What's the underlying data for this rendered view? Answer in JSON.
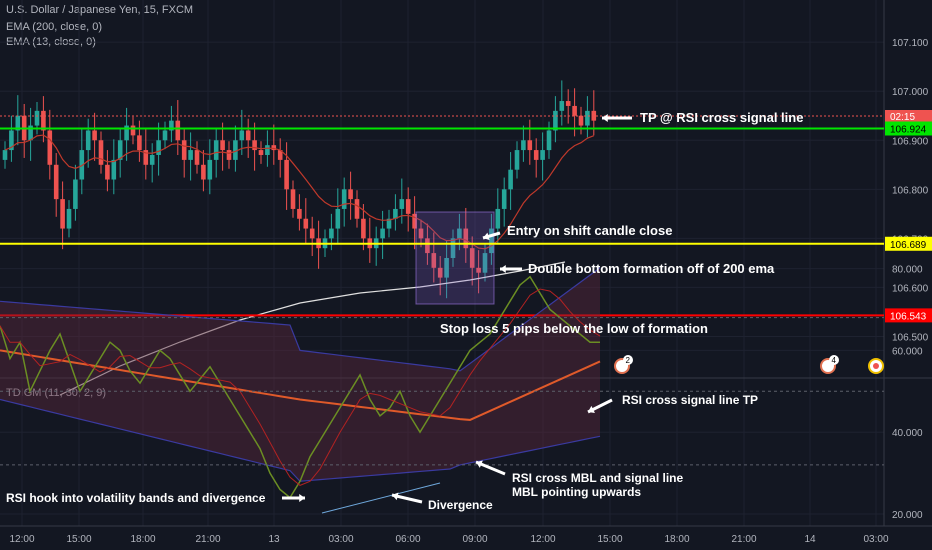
{
  "chart_data": [
    {
      "type": "candlestick",
      "title": "U.S. Dollar / Japanese Yen, 15, FXCM",
      "indicators": [
        "EMA (200, close, 0)",
        "EMA (13, close, 0)"
      ],
      "x_ticks": [
        "12:00",
        "15:00",
        "18:00",
        "21:00",
        "13",
        "03:00",
        "06:00",
        "09:00",
        "12:00",
        "15:00",
        "18:00",
        "21:00",
        "14",
        "03:00"
      ],
      "y_ticks": [
        "106.500",
        "106.600",
        "106.700",
        "106.800",
        "106.900",
        "107.000",
        "107.100"
      ],
      "ylim": [
        106.47,
        107.2
      ],
      "current_price_label": "02:15",
      "levels": [
        {
          "name": "tp-level",
          "value": 106.924,
          "label": "106.924",
          "color": "#00e600"
        },
        {
          "name": "entry-level",
          "value": 106.689,
          "label": "106.689",
          "color": "#ffff00"
        },
        {
          "name": "stop-level",
          "value": 106.543,
          "label": "106.543",
          "color": "#ff0000"
        }
      ],
      "annotations": [
        "TP @ RSI cross signal line",
        "Entry on shift candle close",
        "Double bottom formation off of 200 ema",
        "Stop loss 5 pips below the low of formation"
      ],
      "event_badges": [
        "2",
        "4"
      ],
      "grid": true
    },
    {
      "type": "line",
      "title": "TDIGM (11, 30, 2, 9)",
      "y_ticks": [
        "20.000",
        "40.000",
        "60.000",
        "80.000"
      ],
      "ylim": [
        15,
        86
      ],
      "annotations": [
        "RSI cross signal line TP",
        "RSI cross MBL and signal line",
        "MBL pointing upwards",
        "RSI hook into volatility bands and divergence",
        "Divergence"
      ]
    }
  ]
}
